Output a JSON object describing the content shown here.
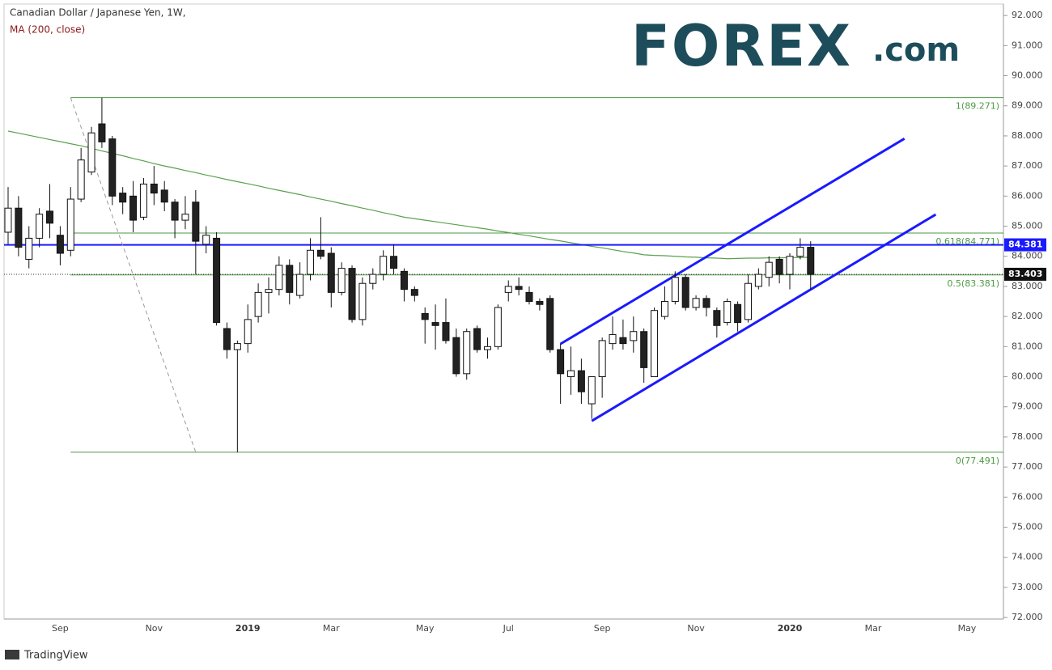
{
  "chart_data": {
    "type": "candlestick",
    "title": "Canadian Dollar / Japanese Yen, 1W,",
    "subtitle": "MA (200, close)",
    "brand_name": "FOREX",
    "brand_suffix": ".com",
    "footer": "TradingView",
    "categories": [
      null,
      null,
      null,
      null,
      null,
      "Sep",
      null,
      null,
      null,
      null,
      null,
      null,
      null,
      null,
      "Nov",
      null,
      null,
      null,
      null,
      null,
      null,
      null,
      null,
      "2019",
      null,
      null,
      null,
      null,
      null,
      null,
      null,
      "Mar",
      null,
      null,
      null,
      null,
      null,
      null,
      null,
      null,
      "May",
      null,
      null,
      null,
      null,
      null,
      null,
      null,
      "Jul",
      null,
      null,
      null,
      null,
      null,
      null,
      null,
      null,
      "Sep",
      null,
      null,
      null,
      null,
      null,
      null,
      null,
      null,
      "Nov",
      null,
      null,
      null,
      null,
      null,
      null,
      null,
      null,
      "2020",
      null,
      null,
      null,
      null,
      null,
      null,
      null,
      "Mar",
      null,
      null,
      null,
      null,
      null,
      null,
      null,
      null,
      "May",
      null,
      null,
      null
    ],
    "open": [
      84.8,
      85.6,
      83.9,
      84.6,
      85.5,
      84.7,
      84.2,
      85.9,
      86.8,
      88.4,
      87.9,
      86.1,
      86.0,
      85.3,
      86.4,
      86.2,
      85.8,
      85.2,
      85.8,
      84.4,
      84.6,
      81.6,
      80.9,
      81.1,
      82.0,
      82.8,
      82.9,
      83.7,
      82.7,
      83.4,
      84.2,
      84.1,
      82.8,
      83.6,
      81.9,
      83.1,
      83.4,
      84.0,
      83.5,
      82.9,
      82.1,
      81.8,
      81.8,
      81.3,
      80.1,
      81.6,
      80.9,
      81.0,
      82.8,
      83.0,
      82.8,
      82.5,
      82.6,
      80.9,
      80.0,
      80.2,
      79.1,
      80.0,
      81.1,
      81.3,
      81.2,
      81.5,
      80.0,
      82.0,
      82.5,
      83.3,
      82.3,
      82.6,
      82.2,
      81.8,
      82.4,
      81.9,
      83.0,
      83.3,
      83.9,
      83.4,
      84.0,
      84.3,
      null,
      null,
      null,
      null,
      null,
      null,
      null,
      null,
      null,
      null,
      null,
      null,
      null,
      null,
      null,
      null,
      null,
      null
    ],
    "high": [
      86.3,
      86.0,
      85.0,
      85.6,
      86.4,
      85.0,
      86.3,
      87.6,
      88.3,
      89.271,
      88.0,
      86.3,
      86.5,
      86.6,
      87.0,
      86.5,
      85.9,
      86.0,
      86.2,
      85.0,
      84.8,
      81.8,
      81.2,
      82.4,
      83.1,
      83.3,
      84.0,
      83.9,
      83.8,
      84.6,
      85.3,
      84.3,
      83.8,
      83.7,
      83.3,
      83.6,
      84.2,
      84.4,
      83.6,
      83.0,
      82.3,
      82.4,
      82.6,
      81.6,
      81.6,
      81.7,
      81.3,
      82.4,
      83.2,
      83.3,
      83.0,
      82.6,
      82.7,
      81.1,
      81.0,
      80.6,
      80.0,
      81.3,
      82.0,
      81.9,
      82.0,
      81.6,
      82.3,
      83.0,
      83.5,
      83.4,
      82.7,
      82.7,
      82.3,
      82.6,
      82.5,
      83.4,
      83.6,
      84.0,
      84.0,
      84.1,
      84.6,
      84.5,
      null,
      null,
      null,
      null,
      null,
      null,
      null,
      null,
      null,
      null,
      null,
      null,
      null,
      null,
      null,
      null,
      null,
      null
    ],
    "low": [
      84.4,
      84.0,
      83.6,
      84.3,
      84.6,
      83.7,
      84.0,
      85.8,
      86.7,
      87.6,
      85.7,
      85.4,
      84.8,
      85.2,
      85.7,
      85.5,
      84.6,
      84.9,
      83.4,
      84.1,
      81.7,
      80.6,
      77.491,
      80.8,
      81.8,
      82.1,
      82.7,
      82.4,
      82.6,
      83.2,
      83.9,
      82.3,
      82.7,
      81.8,
      81.7,
      82.9,
      83.2,
      83.4,
      82.5,
      82.5,
      81.1,
      80.9,
      81.1,
      80.0,
      79.9,
      80.8,
      80.6,
      80.9,
      82.5,
      82.7,
      82.4,
      82.2,
      80.8,
      79.1,
      79.4,
      79.1,
      78.6,
      79.3,
      80.9,
      80.9,
      80.8,
      79.8,
      80.0,
      81.9,
      82.4,
      82.2,
      82.2,
      82.0,
      81.3,
      81.7,
      81.5,
      81.8,
      82.9,
      83.0,
      83.1,
      82.9,
      83.9,
      82.9,
      null,
      null,
      null,
      null,
      null,
      null,
      null,
      null,
      null,
      null,
      null,
      null,
      null,
      null,
      null,
      null,
      null,
      null
    ],
    "close": [
      85.6,
      84.3,
      84.6,
      85.4,
      85.1,
      84.1,
      85.9,
      87.2,
      88.1,
      87.8,
      86.0,
      85.8,
      85.2,
      86.4,
      86.1,
      85.8,
      85.2,
      85.4,
      84.5,
      84.7,
      81.8,
      80.9,
      81.1,
      81.9,
      82.8,
      82.9,
      83.7,
      82.8,
      83.4,
      84.2,
      84.0,
      82.8,
      83.6,
      81.9,
      83.1,
      83.4,
      84.0,
      83.6,
      82.9,
      82.7,
      81.9,
      81.7,
      81.2,
      80.1,
      81.5,
      80.9,
      81.0,
      82.3,
      83.0,
      82.9,
      82.5,
      82.4,
      80.9,
      80.1,
      80.2,
      79.5,
      80.0,
      81.2,
      81.4,
      81.1,
      81.5,
      80.3,
      82.2,
      82.5,
      83.3,
      82.3,
      82.6,
      82.3,
      81.7,
      82.5,
      81.8,
      83.1,
      83.4,
      83.8,
      83.4,
      84.0,
      84.3,
      83.403,
      null,
      null,
      null,
      null,
      null,
      null,
      null,
      null,
      null,
      null,
      null,
      null,
      null,
      null,
      null,
      null,
      null,
      null
    ],
    "ma": {
      "color": "#5aa04e",
      "values": [
        88.16,
        88.09,
        88.02,
        87.95,
        87.88,
        87.81,
        87.74,
        87.67,
        87.59,
        87.5,
        87.42,
        87.34,
        87.25,
        87.17,
        87.08,
        87.0,
        86.93,
        86.85,
        86.78,
        86.7,
        86.63,
        86.55,
        86.48,
        86.41,
        86.34,
        86.26,
        86.19,
        86.12,
        86.05,
        85.97,
        85.9,
        85.83,
        85.75,
        85.68,
        85.6,
        85.53,
        85.45,
        85.38,
        85.3,
        85.25,
        85.2,
        85.15,
        85.1,
        85.05,
        85.0,
        84.95,
        84.9,
        84.84,
        84.79,
        84.73,
        84.68,
        84.62,
        84.56,
        84.51,
        84.45,
        84.39,
        84.33,
        84.28,
        84.22,
        84.16,
        84.11,
        84.05,
        84.03,
        84.02,
        84.0,
        83.98,
        83.97,
        83.95,
        83.94,
        83.92,
        83.93,
        83.94,
        83.94,
        83.95,
        83.95,
        83.96,
        83.96,
        83.97,
        null,
        null,
        null,
        null,
        null,
        null,
        null,
        null,
        null,
        null,
        null,
        null,
        null,
        null,
        null,
        null,
        null,
        null
      ]
    },
    "fib_color": "#4e9a44",
    "fib_levels": [
      {
        "value": 89.271,
        "label": "1(89.271)"
      },
      {
        "value": 84.771,
        "label": "0.618(84.771)"
      },
      {
        "value": 83.381,
        "label": "0.5(83.381)"
      },
      {
        "value": 77.491,
        "label": "0(77.491)"
      }
    ],
    "hline": {
      "value": 84.381,
      "color": "#1a1aff"
    },
    "last_price": 83.403,
    "trendlines": [
      {
        "color": "#1a1aff",
        "dashed": false,
        "x": [
          53,
          86
        ],
        "y": [
          81.09,
          87.91
        ]
      },
      {
        "color": "#1a1aff",
        "dashed": false,
        "x": [
          56,
          89
        ],
        "y": [
          78.53,
          85.39
        ]
      },
      {
        "color": "#999999",
        "dashed": true,
        "x": [
          6,
          18
        ],
        "y": [
          89.271,
          77.491
        ]
      }
    ],
    "ylim": [
      71.95,
      92.38
    ],
    "yticks": [
      {
        "value": 72,
        "label": "72.000"
      },
      {
        "value": 73,
        "label": "73.000"
      },
      {
        "value": 74,
        "label": "74.000"
      },
      {
        "value": 75,
        "label": "75.000"
      },
      {
        "value": 76,
        "label": "76.000"
      },
      {
        "value": 77,
        "label": "77.000"
      },
      {
        "value": 78,
        "label": "78.000"
      },
      {
        "value": 79,
        "label": "79.000"
      },
      {
        "value": 80,
        "label": "80.000"
      },
      {
        "value": 81,
        "label": "81.000"
      },
      {
        "value": 82,
        "label": "82.000"
      },
      {
        "value": 83,
        "label": "83.000"
      },
      {
        "value": 84,
        "label": "84.000"
      },
      {
        "value": 85,
        "label": "85.000"
      },
      {
        "value": 86,
        "label": "86.000"
      },
      {
        "value": 87,
        "label": "87.000"
      },
      {
        "value": 88,
        "label": "88.000"
      },
      {
        "value": 89,
        "label": "89.000"
      },
      {
        "value": 90,
        "label": "90.000"
      },
      {
        "value": 91,
        "label": "91.000"
      },
      {
        "value": 92,
        "label": "92.000"
      }
    ]
  }
}
